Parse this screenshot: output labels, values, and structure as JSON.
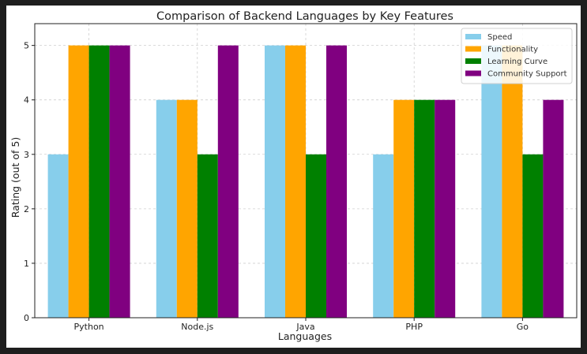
{
  "chart_data": {
    "type": "bar",
    "title": "Comparison of Backend Languages by Key Features",
    "xlabel": "Languages",
    "ylabel": "Rating (out of 5)",
    "categories": [
      "Python",
      "Node.js",
      "Java",
      "PHP",
      "Go"
    ],
    "ylim": [
      0,
      5.4
    ],
    "yticks": [
      "0",
      "1",
      "2",
      "3",
      "4",
      "5"
    ],
    "grid": true,
    "legend_position": "top-right",
    "series": [
      {
        "name": "Speed",
        "color": "#87ceeb",
        "values": [
          3,
          4,
          5,
          3,
          5
        ]
      },
      {
        "name": "Functionality",
        "color": "#ffa500",
        "values": [
          5,
          4,
          5,
          4,
          5
        ]
      },
      {
        "name": "Learning Curve",
        "color": "#008000",
        "values": [
          5,
          3,
          3,
          4,
          3
        ]
      },
      {
        "name": "Community Support",
        "color": "#800080",
        "values": [
          5,
          5,
          5,
          4,
          4
        ]
      }
    ]
  }
}
